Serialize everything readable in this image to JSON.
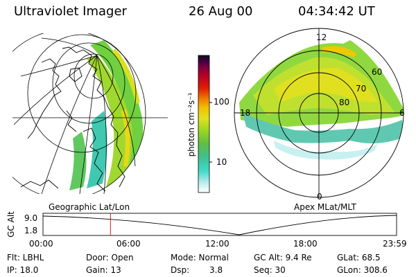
{
  "header": {
    "instrument": "Ultraviolet Imager",
    "date": "26 Aug 00",
    "time": "04:34:42 UT"
  },
  "colorbar": {
    "unit_label": "photon cm⁻²s⁻¹",
    "ticks": [
      "100",
      "10"
    ],
    "colors": [
      "#ffffff",
      "#c8f0f0",
      "#40d8c8",
      "#40c090",
      "#60c040",
      "#a0d820",
      "#e0e020",
      "#f0c000",
      "#f08000",
      "#e02000",
      "#c00020",
      "#800040",
      "#400040",
      "#101020"
    ]
  },
  "geo_panel": {
    "label": "Geographic Lat/Lon"
  },
  "polar_panel": {
    "label": "Apex MLat/MLT",
    "mlt_labels": {
      "top": "12",
      "left": "18",
      "right": "6",
      "bottom": "0"
    },
    "lat_labels": [
      "60",
      "70",
      "80"
    ]
  },
  "altitude_plot": {
    "ylabel": "GC Alt",
    "yticks": [
      "9.0",
      "1.8"
    ],
    "xticks": [
      "00:00",
      "06:00",
      "12:00",
      "18:00",
      "23:59"
    ],
    "marker_color": "#d02020",
    "marker_time_hours": 4.58
  },
  "info": {
    "flt": "Flt: LBHL",
    "door": "Door: Open",
    "mode": "Mode: Normal",
    "gc_alt": "GC Alt: 9.4 Re",
    "glat": "GLat:  68.5",
    "ip": "IP: 18.0",
    "gain": "Gain: 13",
    "dsp_label": "Dsp:",
    "dsp_value": "3.8",
    "seq": "Seq: 30",
    "glon": "GLon: 308.6"
  }
}
